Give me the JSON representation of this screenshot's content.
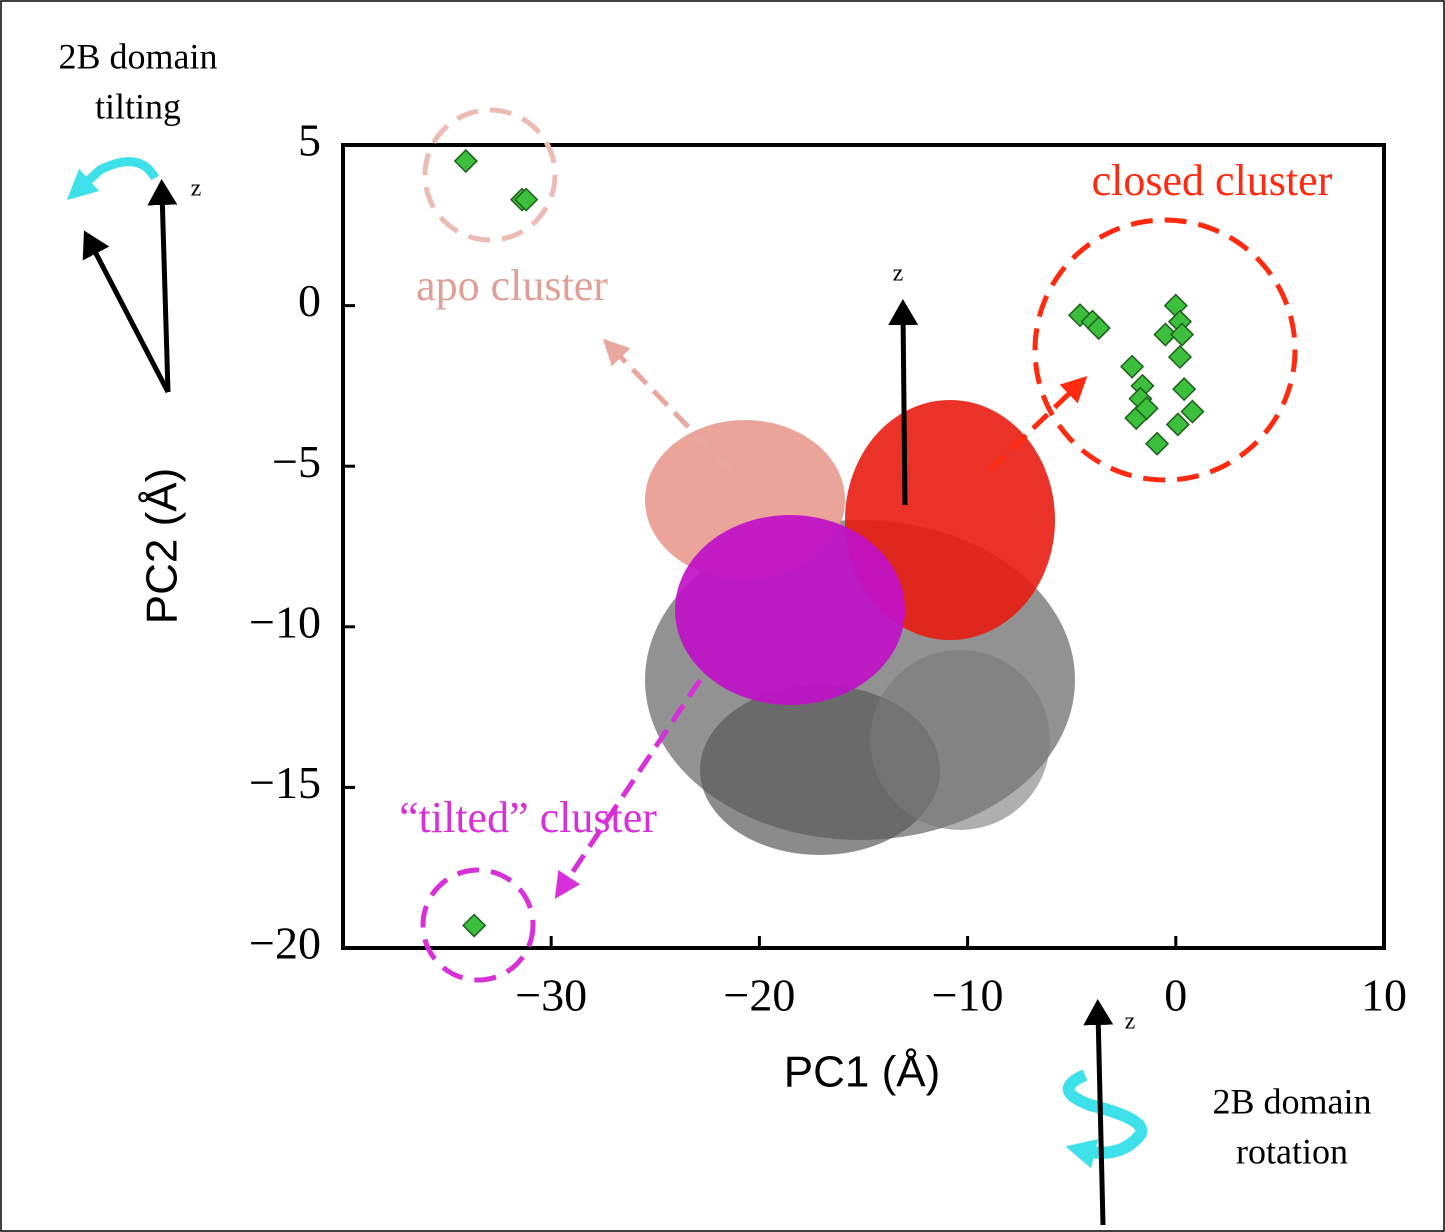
{
  "chart_data": {
    "type": "scatter",
    "xlabel": "PC1 (Å)",
    "ylabel": "PC2 (Å)",
    "x": [
      -34.1,
      -31.4,
      -31.2,
      -33.7,
      -4.6,
      -4.0,
      -3.7,
      0.0,
      0.2,
      -0.5,
      0.3,
      0.2,
      -2.1,
      -1.6,
      -1.7,
      0.4,
      -1.9,
      -1.4,
      0.8,
      0.1,
      -0.9
    ],
    "values": [
      4.5,
      3.3,
      3.3,
      -19.3,
      -0.3,
      -0.5,
      -0.7,
      0.0,
      -0.5,
      -0.9,
      -0.9,
      -1.6,
      -1.9,
      -2.5,
      -2.9,
      -2.6,
      -3.5,
      -3.2,
      -3.3,
      -3.7,
      -4.3
    ],
    "color": "#3cbf3c",
    "xlim": [
      -40,
      10
    ],
    "xticks": [
      {
        "value": -30,
        "label": "−30"
      },
      {
        "value": -20,
        "label": "−20"
      },
      {
        "value": -10,
        "label": "−10"
      },
      0,
      10
    ],
    "ylim": [
      -20,
      5
    ],
    "yticks": [
      {
        "value": -20,
        "label": "−20"
      },
      {
        "value": -15,
        "label": "−15"
      },
      {
        "value": -10,
        "label": "−10"
      },
      {
        "value": -5,
        "label": "−5"
      },
      0,
      5
    ],
    "annotations": [
      "2B domain",
      "tilting",
      "z",
      "apo cluster",
      "closed cluster",
      "z",
      "“tilted” cluster",
      "z",
      "2B domain",
      "rotation"
    ]
  }
}
